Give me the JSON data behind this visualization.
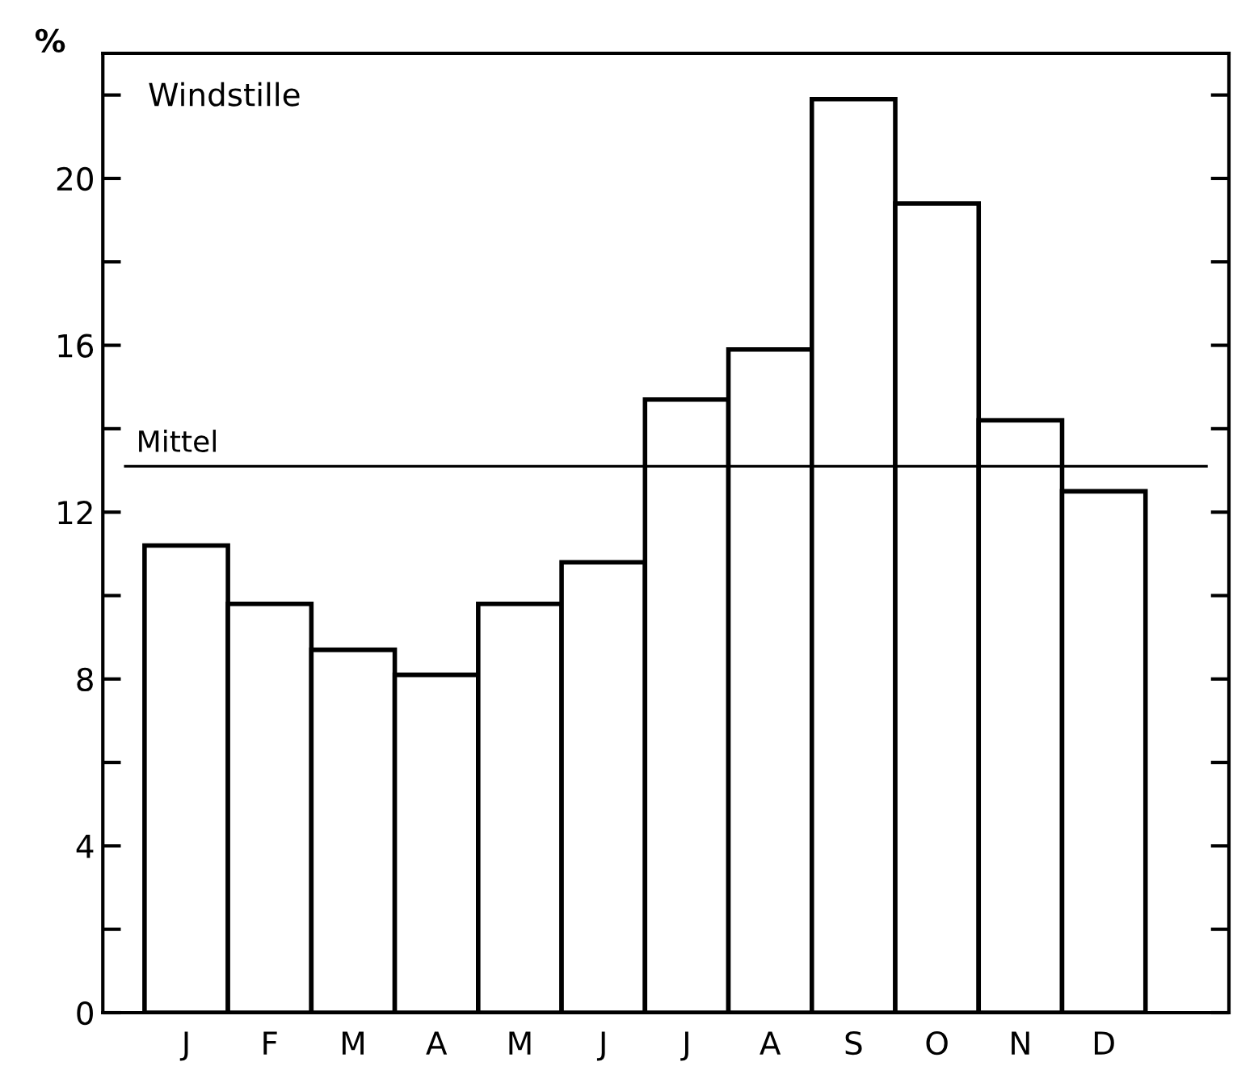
{
  "chart_data": {
    "type": "bar",
    "title": "Windstille",
    "ylabel": "%",
    "categories": [
      "J",
      "F",
      "M",
      "A",
      "M",
      "J",
      "J",
      "A",
      "S",
      "O",
      "N",
      "D"
    ],
    "values": [
      11.2,
      9.8,
      8.7,
      8.1,
      9.8,
      10.8,
      14.7,
      15.9,
      21.9,
      19.4,
      14.2,
      12.5
    ],
    "color": "#ffffff",
    "ylim": [
      0,
      23
    ],
    "yticks": [
      0,
      {
        "value": 2,
        "label": null
      },
      4,
      {
        "value": 6,
        "label": null
      },
      8,
      {
        "value": 10,
        "label": null
      },
      12,
      {
        "value": 14,
        "label": null
      },
      16,
      {
        "value": 18,
        "label": null
      },
      20,
      {
        "value": 22,
        "label": null
      }
    ],
    "ref_lines": [
      {
        "axis": "y",
        "value": 13.1,
        "label": "Mittel",
        "color": "#000000"
      }
    ],
    "grid": false
  }
}
